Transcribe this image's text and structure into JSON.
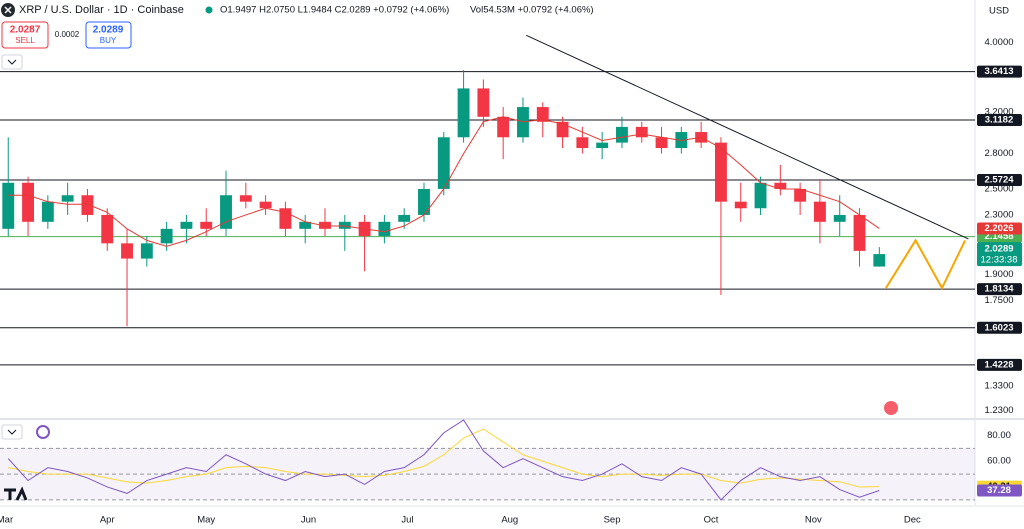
{
  "header": {
    "symbol": "XRP / U.S. Dollar · 1D · Coinbase",
    "ohlc": "O1.9497 H2.0750 L1.9484 C2.0289 +0.0792 (+4.06%)",
    "volume": "Vol54.53M +0.0792 (+4.06%)",
    "currency": "USD"
  },
  "trade_panel": {
    "sell_price": 2.0287,
    "sell_label": "SELL",
    "spread": 0.0002,
    "buy_price": 2.0289,
    "buy_label": "BUY"
  },
  "chart_data": {
    "type": "candlestick",
    "log_scale": true,
    "x": [
      1,
      7,
      13,
      19,
      25,
      31,
      37,
      43,
      49,
      55,
      61,
      67,
      73,
      79,
      85,
      91,
      97,
      103,
      109,
      115,
      121,
      127,
      133,
      139,
      145,
      151,
      157,
      163,
      169,
      175,
      181,
      187,
      193,
      199,
      205,
      211,
      217,
      223,
      229,
      235,
      241,
      247,
      253,
      259,
      265
    ],
    "open": [
      2.2,
      2.55,
      2.25,
      2.4,
      2.45,
      2.3,
      2.1,
      2.0,
      2.1,
      2.2,
      2.25,
      2.2,
      2.45,
      2.4,
      2.35,
      2.2,
      2.25,
      2.2,
      2.25,
      2.15,
      2.25,
      2.3,
      2.5,
      2.95,
      3.45,
      3.15,
      2.95,
      3.25,
      3.1,
      2.95,
      2.85,
      2.9,
      3.05,
      2.95,
      2.85,
      3.0,
      2.9,
      2.4,
      2.35,
      2.55,
      2.5,
      2.4,
      2.25,
      2.3,
      1.9497
    ],
    "high": [
      2.95,
      2.6,
      2.45,
      2.55,
      2.5,
      2.35,
      2.2,
      2.15,
      2.25,
      2.3,
      2.35,
      2.65,
      2.55,
      2.45,
      2.4,
      2.3,
      2.35,
      2.3,
      2.3,
      2.3,
      2.35,
      2.55,
      3.0,
      3.66,
      3.55,
      3.25,
      3.35,
      3.3,
      3.15,
      3.05,
      3.0,
      3.15,
      3.1,
      3.05,
      3.05,
      3.1,
      2.95,
      2.55,
      2.6,
      2.7,
      2.55,
      2.58,
      2.45,
      2.35,
      2.075
    ],
    "low": [
      2.15,
      2.15,
      2.2,
      2.3,
      2.25,
      2.05,
      1.61,
      1.95,
      2.05,
      2.1,
      2.15,
      2.15,
      2.35,
      2.3,
      2.15,
      2.1,
      2.15,
      2.05,
      1.92,
      2.1,
      2.2,
      2.25,
      2.45,
      2.9,
      3.05,
      2.75,
      2.9,
      2.95,
      2.85,
      2.8,
      2.75,
      2.85,
      2.9,
      2.8,
      2.8,
      2.85,
      1.78,
      2.25,
      2.3,
      2.45,
      2.3,
      2.1,
      2.15,
      1.95,
      1.9484
    ],
    "close": [
      2.55,
      2.25,
      2.4,
      2.45,
      2.3,
      2.1,
      2.0,
      2.1,
      2.2,
      2.25,
      2.2,
      2.45,
      2.4,
      2.35,
      2.2,
      2.25,
      2.2,
      2.25,
      2.15,
      2.25,
      2.3,
      2.5,
      2.95,
      3.45,
      3.15,
      2.95,
      3.25,
      3.1,
      2.95,
      2.85,
      2.9,
      3.05,
      2.95,
      2.85,
      3.0,
      2.9,
      2.4,
      2.35,
      2.55,
      2.5,
      2.4,
      2.25,
      2.3,
      2.05,
      2.0289
    ],
    "up_color": "#089981",
    "down_color": "#f23645",
    "countdown": "12:33:38",
    "ma": {
      "color": "#e53935",
      "values": [
        2.45,
        2.45,
        2.4,
        2.38,
        2.38,
        2.32,
        2.2,
        2.12,
        2.08,
        2.12,
        2.18,
        2.25,
        2.3,
        2.35,
        2.32,
        2.25,
        2.22,
        2.22,
        2.2,
        2.18,
        2.22,
        2.3,
        2.5,
        2.8,
        3.1,
        3.15,
        3.1,
        3.12,
        3.08,
        3.0,
        2.92,
        2.95,
        2.98,
        2.95,
        2.92,
        2.95,
        2.85,
        2.7,
        2.55,
        2.5,
        2.5,
        2.45,
        2.4,
        2.3,
        2.2026
      ]
    },
    "levels": [
      3.6413,
      3.1182,
      2.5724,
      1.8134,
      1.6023,
      1.4228
    ],
    "support_level": {
      "value": 2.1458,
      "color": "#4caf50"
    },
    "trendline": {
      "x": [
        158,
        292
      ],
      "y": [
        4.09,
        2.13
      ]
    },
    "projection": {
      "color": "#f7a600",
      "x": [
        267,
        276,
        284,
        291
      ],
      "y": [
        1.82,
        2.12,
        1.82,
        2.12
      ]
    },
    "xlim": [
      -1.5,
      294
    ],
    "ylim": [
      1.2,
      4.58
    ],
    "xticks": [
      {
        "value": 0,
        "label": "Mar"
      },
      {
        "value": 31,
        "label": "Apr"
      },
      {
        "value": 61,
        "label": "May"
      },
      {
        "value": 92,
        "label": "Jun"
      },
      {
        "value": 122,
        "label": "Jul"
      },
      {
        "value": 153,
        "label": "Aug"
      },
      {
        "value": 184,
        "label": "Sep"
      },
      {
        "value": 214,
        "label": "Oct"
      },
      {
        "value": 245,
        "label": "Nov"
      },
      {
        "value": 275,
        "label": "Dec"
      }
    ],
    "yticks": [
      {
        "value": 4,
        "label": "4.0000"
      },
      {
        "value": 3.2,
        "label": "3.2000"
      },
      {
        "value": 2.8,
        "label": "2.8000"
      },
      {
        "value": 2.5,
        "label": "2.5000"
      },
      {
        "value": 2.3,
        "label": "2.3000"
      },
      {
        "value": 1.9,
        "label": "1.9000"
      },
      {
        "value": 1.75,
        "label": "1.7500"
      },
      {
        "value": 1.33,
        "label": "1.3300"
      },
      {
        "value": 1.23,
        "label": "1.2300"
      }
    ],
    "rsi": {
      "color": "#7e57c2",
      "values": [
        62,
        45,
        55,
        52,
        47,
        40,
        35,
        45,
        50,
        55,
        52,
        65,
        58,
        50,
        45,
        52,
        48,
        50,
        42,
        52,
        55,
        65,
        82,
        92,
        68,
        55,
        62,
        55,
        48,
        45,
        50,
        58,
        48,
        45,
        55,
        50,
        30,
        45,
        55,
        48,
        45,
        48,
        38,
        32,
        37.28
      ]
    },
    "rsi_ma": {
      "color": "#fdd835",
      "values": [
        55,
        52,
        50,
        50,
        50,
        47,
        44,
        43,
        45,
        48,
        50,
        55,
        56,
        55,
        52,
        50,
        50,
        49,
        48,
        49,
        52,
        56,
        65,
        78,
        85,
        75,
        65,
        60,
        55,
        50,
        48,
        50,
        50,
        49,
        50,
        50,
        45,
        43,
        46,
        47,
        46,
        45,
        44,
        40,
        40.31
      ]
    },
    "rsi_ylim": [
      26,
      92
    ],
    "rsi_bands": [
      70,
      50,
      30
    ],
    "rsi_yticks": [
      {
        "value": 80,
        "label": "80.00"
      },
      {
        "value": 60,
        "label": "60.00"
      }
    ]
  }
}
